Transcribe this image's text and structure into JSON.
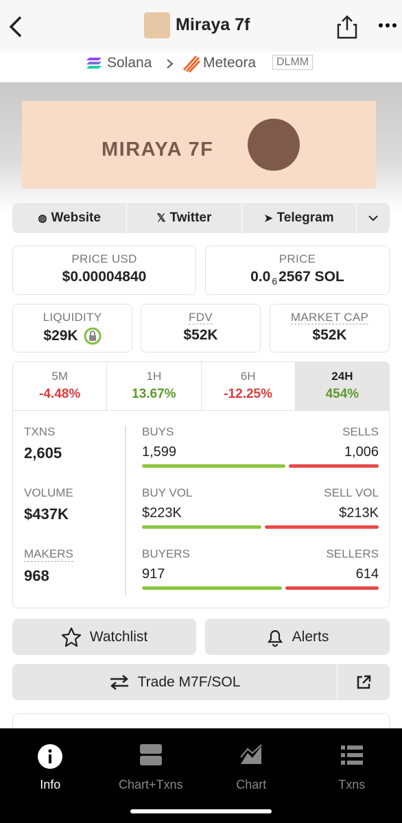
{
  "header": {
    "title": "Miraya 7f"
  },
  "breadcrumb": {
    "chain": "Solana",
    "dex": "Meteora",
    "badge": "DLMM"
  },
  "banner": {
    "text": "MIRAYA 7F"
  },
  "links": [
    "Website",
    "Twitter",
    "Telegram"
  ],
  "stats": {
    "price_usd": {
      "label": "PRICE USD",
      "value": "$0.00004840"
    },
    "price": {
      "label": "PRICE",
      "value_start": "0.0",
      "zero_count": "6",
      "value_end": "2567 SOL"
    },
    "liquidity": {
      "label": "LIQUIDITY",
      "value": "$29K"
    },
    "fdv": {
      "label": "FDV",
      "value": "$52K"
    },
    "market_cap": {
      "label": "MARKET CAP",
      "value": "$52K"
    }
  },
  "timeframes": [
    {
      "label": "5M",
      "change": "-4.48%"
    },
    {
      "label": "1H",
      "change": "13.67%"
    },
    {
      "label": "6H",
      "change": "-12.25%"
    },
    {
      "label": "24H",
      "change": "454%"
    }
  ],
  "metrics": [
    {
      "label": "TXNS",
      "value": "2,605",
      "left_label": "BUYS",
      "left_value": "1,599",
      "right_label": "SELLS",
      "right_value": "1,006"
    },
    {
      "label": "VOLUME",
      "value": "$437K",
      "left_label": "BUY VOL",
      "left_value": "$223K",
      "right_label": "SELL VOL",
      "right_value": "$213K"
    },
    {
      "label": "MAKERS",
      "value": "968",
      "left_label": "BUYERS",
      "left_value": "917",
      "right_label": "SELLERS",
      "right_value": "614"
    }
  ],
  "actions": {
    "watchlist": "Watchlist",
    "alerts": "Alerts",
    "trade": "Trade M7F/SOL"
  },
  "nav": [
    "Info",
    "Chart+Txns",
    "Chart",
    "Txns"
  ]
}
